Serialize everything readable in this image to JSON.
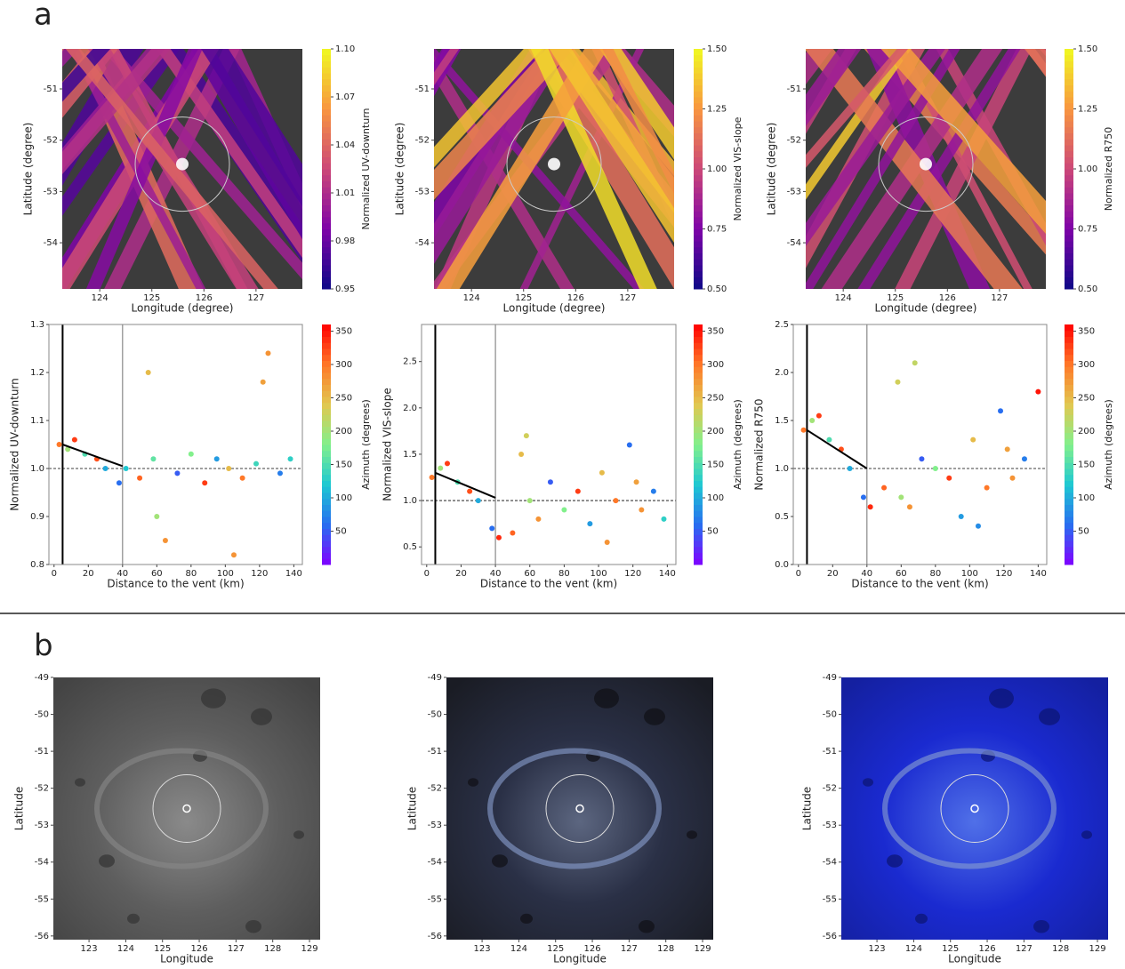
{
  "panel_labels": [
    "a",
    "b"
  ],
  "chart_data": [
    {
      "type": "map",
      "xlabel": "Longitude (degree)",
      "ylabel": "Latitude (degree)",
      "clabel": "Normalized UV-downturn",
      "xlim": [
        123.28,
        127.89
      ],
      "xticks": [
        124,
        125,
        126,
        127
      ],
      "ylim": [
        -54.9,
        -50.22
      ],
      "yticks": [
        -51,
        -52,
        -53,
        -54
      ],
      "clim": [
        0.95,
        1.1
      ],
      "cticks": [
        0.95,
        0.98,
        1.01,
        1.04,
        1.07,
        {
          "value": 1.1,
          "label": "1.10"
        }
      ],
      "colormap": "plasma"
    },
    {
      "type": "map",
      "xlabel": "Longitude (degree)",
      "ylabel": "Latitude (degree)",
      "clabel": "Normalized VIS-slope",
      "xlim": [
        123.28,
        127.89
      ],
      "xticks": [
        124,
        125,
        126,
        127
      ],
      "ylim": [
        -54.9,
        -50.22
      ],
      "yticks": [
        -51,
        -52,
        -53,
        -54
      ],
      "clim": [
        0.5,
        1.5
      ],
      "cticks": [
        {
          "value": 0.5,
          "label": "0.50"
        },
        0.75,
        {
          "value": 1,
          "label": "1.00"
        },
        1.25,
        {
          "value": 1.5,
          "label": "1.50"
        }
      ],
      "colormap": "plasma"
    },
    {
      "type": "map",
      "xlabel": "Longitude (degree)",
      "ylabel": "Latitude (degree)",
      "clabel": "Normalized R750",
      "xlim": [
        123.28,
        127.89
      ],
      "xticks": [
        124,
        125,
        126,
        127
      ],
      "ylim": [
        -54.9,
        -50.22
      ],
      "yticks": [
        -51,
        -52,
        -53,
        -54
      ],
      "clim": [
        0.5,
        1.5
      ],
      "cticks": [
        {
          "value": 0.5,
          "label": "0.50"
        },
        0.75,
        {
          "value": 1,
          "label": "1.00"
        },
        1.25,
        {
          "value": 1.5,
          "label": "1.50"
        }
      ],
      "colormap": "plasma"
    },
    {
      "type": "scatter",
      "xlabel": "Distance to the vent (km)",
      "ylabel": "Normalized UV-downturn",
      "clabel": "Azimuth (degrees)",
      "xlim": [
        -3,
        145
      ],
      "xticks": [
        0,
        20,
        40,
        60,
        80,
        100,
        120,
        140
      ],
      "ylim": [
        0.8,
        1.3
      ],
      "yticks": [
        0.8,
        0.9,
        {
          "value": 1,
          "label": "1.0"
        },
        1.1,
        1.2,
        1.3
      ],
      "clim": [
        0,
        360
      ],
      "cticks": [
        50,
        100,
        150,
        200,
        250,
        300,
        350
      ],
      "colormap": "rainbow",
      "vlines": [
        5,
        40
      ],
      "hline": 1,
      "trend": {
        "x": [
          5,
          40
        ],
        "y": [
          1.05,
          1.005
        ]
      },
      "x": [
        3,
        8,
        12,
        18,
        25,
        30,
        38,
        42,
        50,
        58,
        65,
        72,
        80,
        88,
        95,
        102,
        110,
        118,
        125,
        132,
        138,
        55,
        105,
        122,
        60
      ],
      "y": [
        1.05,
        1.04,
        1.06,
        1.03,
        1.02,
        1.0,
        0.97,
        1.0,
        0.98,
        1.02,
        0.85,
        0.99,
        1.03,
        0.97,
        1.02,
        1.0,
        0.98,
        1.01,
        1.24,
        0.99,
        1.02,
        1.2,
        0.82,
        1.18,
        0.9
      ],
      "c": [
        300,
        200,
        330,
        150,
        320,
        100,
        60,
        120,
        310,
        160,
        280,
        50,
        180,
        330,
        90,
        250,
        300,
        140,
        280,
        70,
        130,
        250,
        280,
        270,
        200
      ]
    },
    {
      "type": "scatter",
      "xlabel": "Distance to the vent (km)",
      "ylabel": "Normalized VIS-slope",
      "clabel": "Azimuth (degrees)",
      "xlim": [
        -3,
        145
      ],
      "xticks": [
        0,
        20,
        40,
        60,
        80,
        100,
        120,
        140
      ],
      "ylim": [
        0.31,
        2.9
      ],
      "yticks": [
        0.5,
        {
          "value": 1,
          "label": "1.0"
        },
        1.5,
        {
          "value": 2,
          "label": "2.0"
        },
        2.5
      ],
      "clim": [
        0,
        360
      ],
      "cticks": [
        50,
        100,
        150,
        200,
        250,
        300,
        350
      ],
      "colormap": "rainbow",
      "vlines": [
        5,
        40
      ],
      "hline": 1,
      "trend": {
        "x": [
          5,
          40
        ],
        "y": [
          1.3,
          1.03
        ]
      },
      "x": [
        3,
        8,
        12,
        18,
        25,
        30,
        38,
        42,
        50,
        58,
        65,
        72,
        80,
        88,
        95,
        102,
        110,
        118,
        125,
        132,
        138,
        55,
        105,
        122,
        60
      ],
      "y": [
        1.25,
        1.35,
        1.4,
        1.2,
        1.1,
        1.0,
        0.7,
        0.6,
        0.65,
        1.7,
        0.8,
        1.2,
        0.9,
        1.1,
        0.75,
        1.3,
        1.0,
        1.6,
        0.9,
        1.1,
        0.8,
        1.5,
        0.55,
        1.2,
        1.0
      ],
      "c": [
        300,
        200,
        330,
        150,
        320,
        100,
        60,
        340,
        310,
        230,
        280,
        50,
        180,
        330,
        90,
        250,
        300,
        60,
        280,
        70,
        130,
        250,
        280,
        270,
        200
      ]
    },
    {
      "type": "scatter",
      "xlabel": "Distance to the vent (km)",
      "ylabel": "Normalized R750",
      "clabel": "Azimuth (degrees)",
      "xlim": [
        -3,
        145
      ],
      "xticks": [
        0,
        20,
        40,
        60,
        80,
        100,
        120,
        140
      ],
      "ylim": [
        0,
        2.5
      ],
      "yticks": [
        {
          "value": 0,
          "label": "0.0"
        },
        0.5,
        {
          "value": 1,
          "label": "1.0"
        },
        1.5,
        {
          "value": 2,
          "label": "2.0"
        },
        2.5
      ],
      "clim": [
        0,
        360
      ],
      "cticks": [
        50,
        100,
        150,
        200,
        250,
        300,
        350
      ],
      "colormap": "rainbow",
      "vlines": [
        5,
        40
      ],
      "hline": 1,
      "trend": {
        "x": [
          5,
          40
        ],
        "y": [
          1.4,
          1.0
        ]
      },
      "x": [
        3,
        8,
        12,
        18,
        25,
        30,
        38,
        42,
        50,
        58,
        65,
        72,
        80,
        88,
        95,
        102,
        110,
        118,
        125,
        132,
        140,
        68,
        105,
        122,
        60
      ],
      "y": [
        1.4,
        1.5,
        1.55,
        1.3,
        1.2,
        1.0,
        0.7,
        0.6,
        0.8,
        1.9,
        0.6,
        1.1,
        1.0,
        0.9,
        0.5,
        1.3,
        0.8,
        1.6,
        0.9,
        1.1,
        1.8,
        2.1,
        0.4,
        1.2,
        0.7
      ],
      "c": [
        300,
        200,
        330,
        150,
        320,
        100,
        60,
        340,
        310,
        230,
        280,
        50,
        180,
        330,
        90,
        250,
        300,
        60,
        280,
        70,
        350,
        220,
        80,
        270,
        200
      ]
    },
    {
      "type": "image",
      "xlabel": "Longitude",
      "ylabel": "Latitude",
      "xlim": [
        122.03,
        129.29
      ],
      "xticks": [
        123,
        124,
        125,
        126,
        127,
        128,
        129
      ],
      "ylim": [
        -56.1,
        -49
      ],
      "yticks": [
        -49,
        -50,
        -51,
        -52,
        -53,
        -54,
        -55,
        -56
      ]
    },
    {
      "type": "image",
      "xlabel": "Longitude",
      "ylabel": "Latitude",
      "xlim": [
        122.03,
        129.29
      ],
      "xticks": [
        123,
        124,
        125,
        126,
        127,
        128,
        129
      ],
      "ylim": [
        -56.1,
        -49
      ],
      "yticks": [
        -49,
        -50,
        -51,
        -52,
        -53,
        -54,
        -55,
        -56
      ]
    },
    {
      "type": "image",
      "xlabel": "Longitude",
      "ylabel": "Latitude",
      "xlim": [
        122.03,
        129.29
      ],
      "xticks": [
        123,
        124,
        125,
        126,
        127,
        128,
        129
      ],
      "ylim": [
        -56.1,
        -49
      ],
      "yticks": [
        -49,
        -50,
        -51,
        -52,
        -53,
        -54,
        -55,
        -56
      ]
    }
  ]
}
